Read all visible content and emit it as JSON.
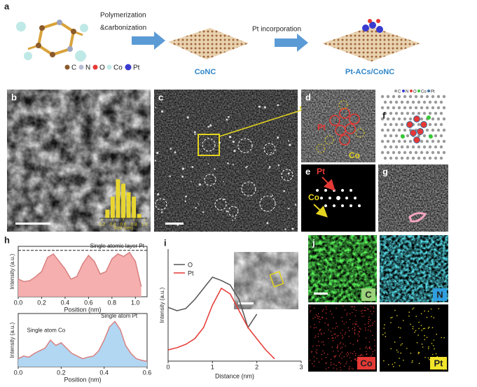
{
  "figure": {
    "panel_a": {
      "label": "a",
      "step1": [
        "Polymerization",
        "&carbonization"
      ],
      "step2": "Pt incorporation",
      "product1": "CoNC",
      "product2": "Pt-ACs/CoNC",
      "legend": [
        "C",
        "N",
        "O",
        "Co",
        "Pt"
      ]
    },
    "panel_b": {
      "label": "b",
      "histogram": {
        "type": "histogram",
        "bins": [
          0.25,
          0.35,
          0.45,
          0.55,
          0.65,
          0.75,
          0.85,
          0.95
        ],
        "values": [
          2,
          5,
          9,
          8,
          6,
          5,
          1
        ],
        "color": "#e8d630",
        "xlim": [
          0.15,
          1.05
        ],
        "ylim": [
          0,
          10
        ],
        "xticks": [
          0.2,
          0.4,
          0.6,
          0.8,
          {
            "value": 1.0,
            "label": "1.0"
          }
        ],
        "xlabel": "Size (nm)"
      }
    },
    "panel_c": {
      "label": "c"
    },
    "panel_d": {
      "label": "d",
      "pt": "Pt",
      "co": "Co"
    },
    "panel_e": {
      "label": "e",
      "pt": "Pt",
      "co": "Co"
    },
    "panel_f": {
      "label": "f",
      "legend": [
        "C",
        "N",
        "O",
        "Co",
        "Pt"
      ]
    },
    "panel_g": {
      "label": "g"
    },
    "panel_h": {
      "label": "h",
      "top": {
        "type": "line",
        "x": [
          0,
          0.05,
          0.1,
          0.15,
          0.2,
          0.25,
          0.3,
          0.35,
          0.4,
          0.45,
          0.5,
          0.55,
          0.6,
          0.65,
          0.7,
          0.75,
          0.8,
          0.85,
          0.9,
          0.95,
          1.0,
          1.05
        ],
        "values": [
          0.35,
          0.3,
          0.32,
          0.4,
          0.5,
          0.78,
          0.85,
          0.7,
          0.55,
          0.35,
          0.4,
          0.65,
          0.82,
          0.7,
          0.45,
          0.5,
          0.75,
          0.85,
          0.8,
          0.88,
          0.7,
          0.2
        ],
        "color": "#f4a6a6",
        "xlim": [
          0,
          1.1
        ],
        "ylim": [
          0,
          1
        ],
        "xticks": [
          {
            "value": 0,
            "label": "0.0"
          },
          0.2,
          0.4,
          0.6,
          0.8,
          {
            "value": 1,
            "label": "1.0"
          }
        ],
        "xlabel": "Position (nm)",
        "ylabel": "Intensity (a.u.)",
        "annotation": "Single atomic layer Pt",
        "annotation_y": 0.92
      },
      "bottom": {
        "type": "line",
        "x": [
          0,
          0.025,
          0.05,
          0.075,
          0.1,
          0.125,
          0.15,
          0.175,
          0.2,
          0.225,
          0.25,
          0.275,
          0.3,
          0.325,
          0.35,
          0.375,
          0.4,
          0.425,
          0.45,
          0.475,
          0.5,
          0.525,
          0.55,
          0.575,
          0.6
        ],
        "values": [
          0.15,
          0.2,
          0.18,
          0.25,
          0.3,
          0.35,
          0.5,
          0.4,
          0.45,
          0.35,
          0.25,
          0.2,
          0.15,
          0.18,
          0.2,
          0.3,
          0.5,
          0.75,
          0.85,
          0.7,
          0.4,
          0.25,
          0.15,
          0.12,
          0.1
        ],
        "color": "#a9d3f2",
        "xlim": [
          0,
          0.6
        ],
        "ylim": [
          0,
          1
        ],
        "xticks": [
          {
            "value": 0,
            "label": "0.0"
          },
          0.2,
          0.4,
          0.6
        ],
        "xlabel": "Position (nm)",
        "ylabel": "Intensity (a.u.)",
        "annotations": [
          "Single atom Co",
          "Single atom Pt"
        ]
      }
    },
    "panel_i": {
      "label": "i",
      "type": "line",
      "x": [
        0,
        0.2,
        0.4,
        0.6,
        0.8,
        1.0,
        1.2,
        1.4,
        1.6,
        1.8,
        2.0,
        2.2,
        2.4
      ],
      "series": [
        {
          "name": "O",
          "color": "#555555",
          "values": [
            0.48,
            0.45,
            0.47,
            0.55,
            0.65,
            0.75,
            0.72,
            0.68,
            0.55,
            0.3,
            0.42,
            null,
            null
          ]
        },
        {
          "name": "Pt",
          "color": "#e53935",
          "values": [
            0.1,
            0.12,
            0.15,
            0.2,
            0.3,
            0.5,
            0.65,
            0.6,
            0.45,
            0.3,
            0.2,
            0.1,
            0.02
          ]
        }
      ],
      "xlim": [
        0,
        3
      ],
      "ylim": [
        0,
        1
      ],
      "xticks": [
        0,
        1,
        2,
        3
      ],
      "xlabel": "Distance (nm)",
      "ylabel": "Intensity (a.u.)"
    },
    "panel_j": {
      "label": "j",
      "maps": [
        "C",
        "N",
        "Co",
        "Pt"
      ]
    }
  }
}
